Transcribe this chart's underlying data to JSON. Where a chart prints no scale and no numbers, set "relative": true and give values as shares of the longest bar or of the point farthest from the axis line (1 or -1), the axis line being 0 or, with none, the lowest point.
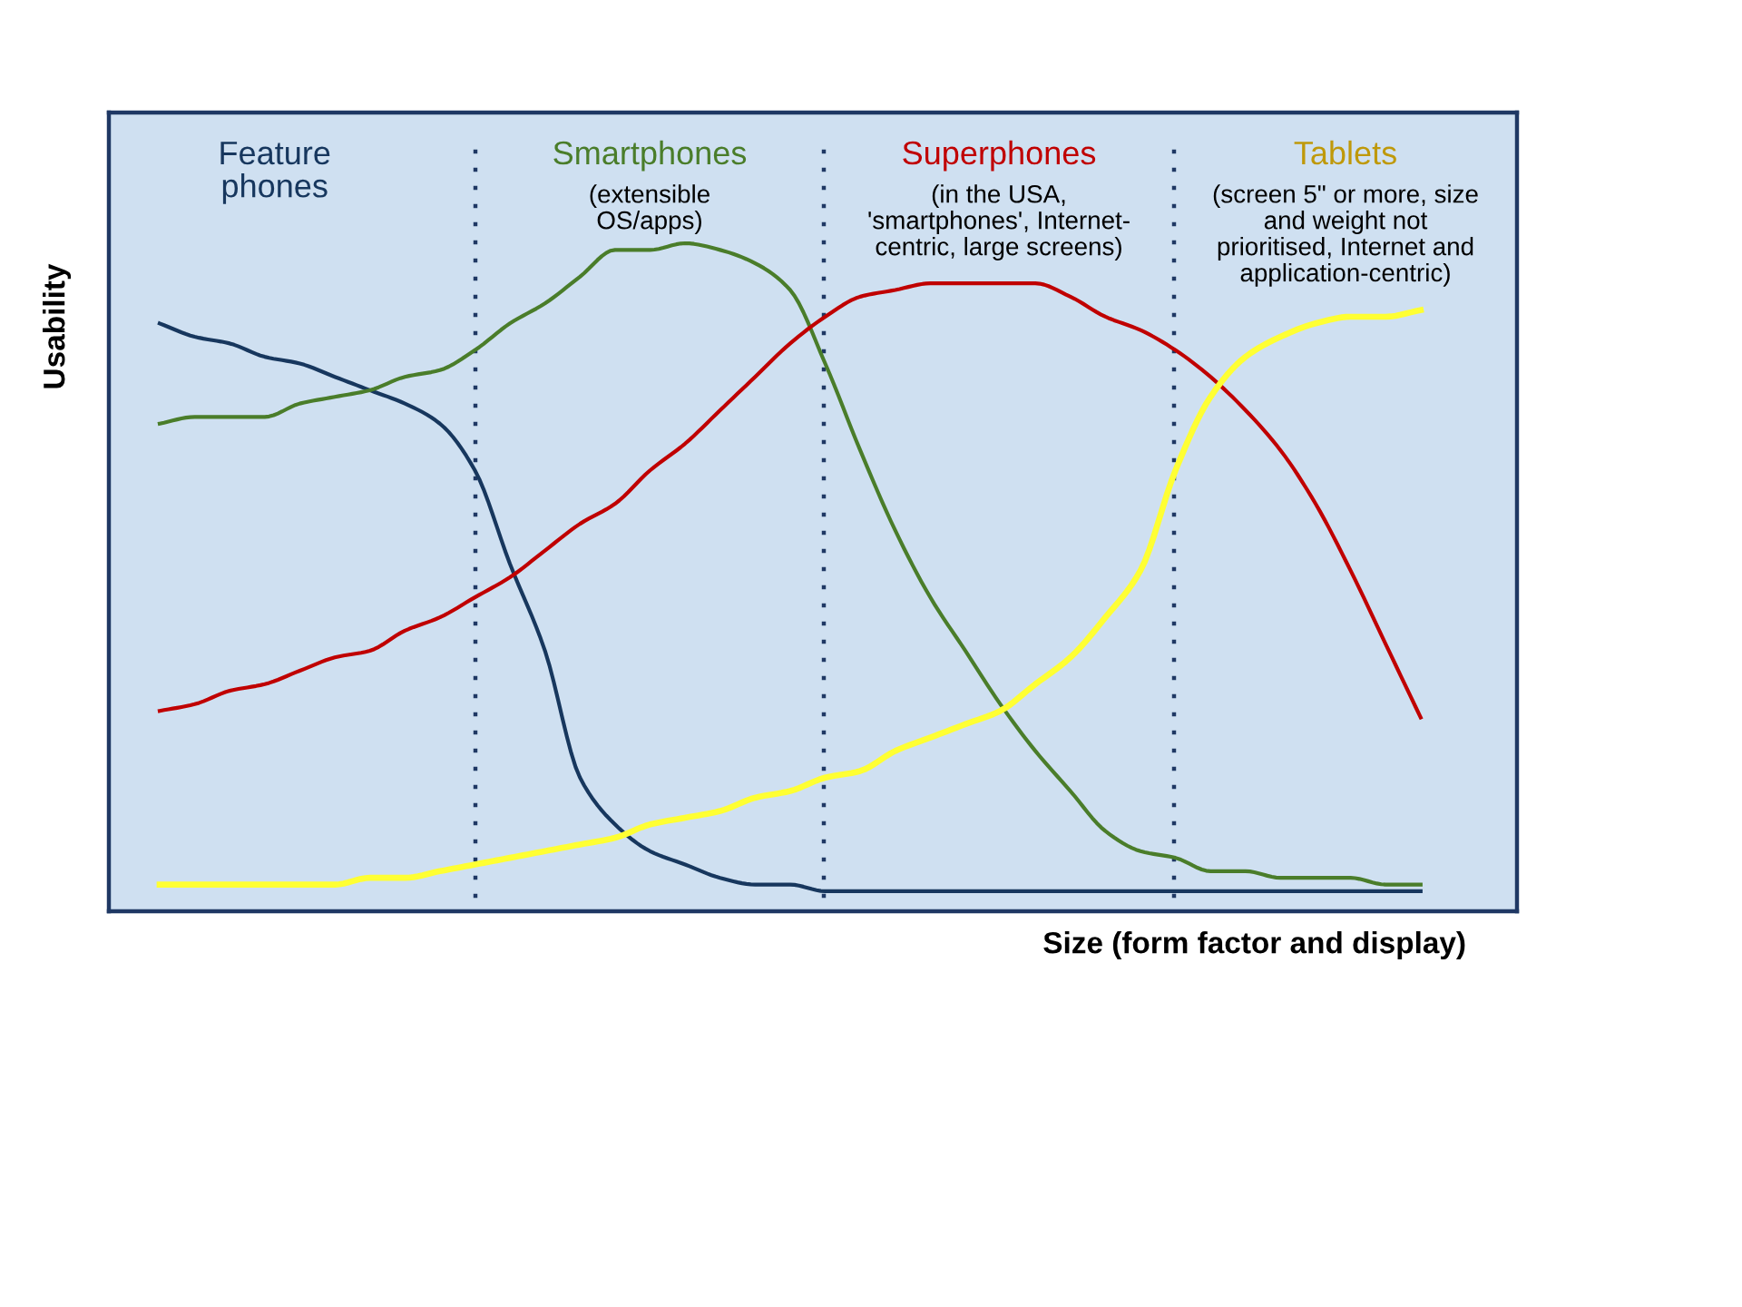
{
  "chart_data": {
    "type": "line",
    "relative": true,
    "xlabel": "Size (form factor and display)",
    "ylabel": "Usability",
    "categories": [
      null,
      null,
      null,
      null,
      null,
      null,
      null,
      null,
      null,
      null,
      null,
      null,
      null,
      null,
      null,
      null,
      null,
      null,
      null,
      null,
      null,
      null,
      null,
      null,
      null,
      null,
      null,
      null,
      null,
      null,
      null,
      null,
      null,
      null,
      null,
      null,
      null
    ],
    "series": [
      {
        "color": "#17375e",
        "values": [
          0.88,
          0.86,
          0.85,
          0.83,
          0.82,
          0.8,
          0.78,
          0.76,
          0.73,
          0.66,
          0.52,
          0.39,
          0.2,
          0.13,
          0.09,
          0.07,
          0.05,
          0.04,
          0.04,
          0.03,
          0.03,
          0.03,
          0.03,
          0.03,
          0.03,
          0.03,
          0.03,
          0.03,
          0.03,
          0.03,
          0.03,
          0.03,
          0.03,
          0.03,
          0.03,
          0.03,
          0.03
        ]
      },
      {
        "color": "#4a7d2a",
        "values": [
          0.73,
          0.74,
          0.74,
          0.74,
          0.76,
          0.77,
          0.78,
          0.8,
          0.81,
          0.84,
          0.88,
          0.91,
          0.95,
          0.99,
          0.99,
          1.0,
          0.99,
          0.97,
          0.93,
          0.82,
          0.69,
          0.57,
          0.47,
          0.39,
          0.31,
          0.24,
          0.18,
          0.12,
          0.09,
          0.08,
          0.06,
          0.06,
          0.05,
          0.05,
          0.05,
          0.04,
          0.04
        ]
      },
      {
        "color": "#c00000",
        "values": [
          0.3,
          0.31,
          0.33,
          0.34,
          0.36,
          0.38,
          0.39,
          0.42,
          0.44,
          0.47,
          0.5,
          0.54,
          0.58,
          0.61,
          0.66,
          0.7,
          0.75,
          0.8,
          0.85,
          0.89,
          0.92,
          0.93,
          0.94,
          0.94,
          0.94,
          0.94,
          0.92,
          0.89,
          0.87,
          0.84,
          0.8,
          0.75,
          0.69,
          0.61,
          0.51,
          0.4,
          0.29
        ]
      },
      {
        "color": "#ffff33",
        "values": [
          0.04,
          0.04,
          0.04,
          0.04,
          0.04,
          0.04,
          0.05,
          0.05,
          0.06,
          0.07,
          0.08,
          0.09,
          0.1,
          0.11,
          0.13,
          0.14,
          0.15,
          0.17,
          0.18,
          0.2,
          0.21,
          0.24,
          0.26,
          0.28,
          0.3,
          0.34,
          0.38,
          0.44,
          0.51,
          0.66,
          0.77,
          0.83,
          0.86,
          0.88,
          0.89,
          0.89,
          0.9
        ]
      }
    ],
    "annotations": [
      "Feature\nphones",
      "Smartphones",
      "(extensible\nOS/apps)",
      "Superphones",
      "(in the USA,\n'smartphones', Internet-\ncentric, large screens)",
      "Tablets",
      "(screen 5\" or more, size\nand weight not\nprioritised, Internet and\napplication-centric)"
    ],
    "grid": "x",
    "marker": "none",
    "line_style": "solid"
  }
}
